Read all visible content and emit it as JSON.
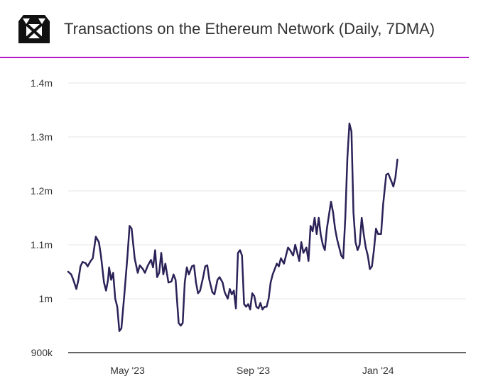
{
  "header": {
    "title": "Transactions on the Ethereum Network (Daily, 7DMA)",
    "logo_icon": "cube-logo-icon",
    "accent_color": "#b318c9"
  },
  "chart_data": {
    "type": "line",
    "title": "Transactions on the Ethereum Network (Daily, 7DMA)",
    "xlabel": "",
    "ylabel": "",
    "ylim": [
      900000,
      1400000
    ],
    "xlim": [
      "2023-03-04",
      "2024-03-27"
    ],
    "grid": true,
    "y_ticks": [
      {
        "value": 900000,
        "label": "900k"
      },
      {
        "value": 1000000,
        "label": "1m"
      },
      {
        "value": 1100000,
        "label": "1.1m"
      },
      {
        "value": 1200000,
        "label": "1.2m"
      },
      {
        "value": 1300000,
        "label": "1.3m"
      },
      {
        "value": 1400000,
        "label": "1.4m"
      }
    ],
    "x_ticks": [
      {
        "date": "2023-05-01",
        "label": "May '23"
      },
      {
        "date": "2023-09-01",
        "label": "Sep '23"
      },
      {
        "date": "2024-01-01",
        "label": "Jan '24"
      }
    ],
    "line_color": "#2b2358",
    "series": [
      {
        "name": "",
        "points": [
          [
            "2023-03-04",
            1050000
          ],
          [
            "2023-03-07",
            1045000
          ],
          [
            "2023-03-09",
            1035000
          ],
          [
            "2023-03-12",
            1018000
          ],
          [
            "2023-03-14",
            1035000
          ],
          [
            "2023-03-16",
            1060000
          ],
          [
            "2023-03-18",
            1068000
          ],
          [
            "2023-03-21",
            1066000
          ],
          [
            "2023-03-23",
            1060000
          ],
          [
            "2023-03-26",
            1070000
          ],
          [
            "2023-03-28",
            1075000
          ],
          [
            "2023-03-31",
            1115000
          ],
          [
            "2023-04-03",
            1105000
          ],
          [
            "2023-04-05",
            1080000
          ],
          [
            "2023-04-08",
            1030000
          ],
          [
            "2023-04-10",
            1015000
          ],
          [
            "2023-04-12",
            1035000
          ],
          [
            "2023-04-13",
            1058000
          ],
          [
            "2023-04-15",
            1035000
          ],
          [
            "2023-04-17",
            1048000
          ],
          [
            "2023-04-19",
            1000000
          ],
          [
            "2023-04-21",
            985000
          ],
          [
            "2023-04-23",
            940000
          ],
          [
            "2023-04-25",
            945000
          ],
          [
            "2023-04-28",
            1010000
          ],
          [
            "2023-05-01",
            1080000
          ],
          [
            "2023-05-03",
            1135000
          ],
          [
            "2023-05-05",
            1130000
          ],
          [
            "2023-05-08",
            1075000
          ],
          [
            "2023-05-11",
            1048000
          ],
          [
            "2023-05-13",
            1062000
          ],
          [
            "2023-05-16",
            1055000
          ],
          [
            "2023-05-18",
            1048000
          ],
          [
            "2023-05-21",
            1062000
          ],
          [
            "2023-05-24",
            1072000
          ],
          [
            "2023-05-26",
            1058000
          ],
          [
            "2023-05-28",
            1090000
          ],
          [
            "2023-05-30",
            1040000
          ],
          [
            "2023-06-01",
            1048000
          ],
          [
            "2023-06-03",
            1085000
          ],
          [
            "2023-06-05",
            1045000
          ],
          [
            "2023-06-07",
            1065000
          ],
          [
            "2023-06-10",
            1030000
          ],
          [
            "2023-06-13",
            1032000
          ],
          [
            "2023-06-15",
            1045000
          ],
          [
            "2023-06-17",
            1035000
          ],
          [
            "2023-06-20",
            955000
          ],
          [
            "2023-06-22",
            950000
          ],
          [
            "2023-06-24",
            955000
          ],
          [
            "2023-06-26",
            1030000
          ],
          [
            "2023-06-28",
            1058000
          ],
          [
            "2023-06-30",
            1045000
          ],
          [
            "2023-07-03",
            1060000
          ],
          [
            "2023-07-05",
            1062000
          ],
          [
            "2023-07-07",
            1030000
          ],
          [
            "2023-07-09",
            1010000
          ],
          [
            "2023-07-11",
            1015000
          ],
          [
            "2023-07-14",
            1040000
          ],
          [
            "2023-07-16",
            1060000
          ],
          [
            "2023-07-18",
            1062000
          ],
          [
            "2023-07-20",
            1035000
          ],
          [
            "2023-07-23",
            1012000
          ],
          [
            "2023-07-25",
            1008000
          ],
          [
            "2023-07-28",
            1035000
          ],
          [
            "2023-07-30",
            1040000
          ],
          [
            "2023-08-02",
            1030000
          ],
          [
            "2023-08-04",
            1012000
          ],
          [
            "2023-08-07",
            1000000
          ],
          [
            "2023-08-09",
            1018000
          ],
          [
            "2023-08-11",
            1008000
          ],
          [
            "2023-08-13",
            1015000
          ],
          [
            "2023-08-15",
            982000
          ],
          [
            "2023-08-17",
            1085000
          ],
          [
            "2023-08-19",
            1090000
          ],
          [
            "2023-08-21",
            1080000
          ],
          [
            "2023-08-23",
            990000
          ],
          [
            "2023-08-25",
            985000
          ],
          [
            "2023-08-27",
            990000
          ],
          [
            "2023-08-29",
            980000
          ],
          [
            "2023-08-31",
            1010000
          ],
          [
            "2023-09-02",
            1005000
          ],
          [
            "2023-09-04",
            985000
          ],
          [
            "2023-09-06",
            982000
          ],
          [
            "2023-09-08",
            992000
          ],
          [
            "2023-09-10",
            980000
          ],
          [
            "2023-09-12",
            985000
          ],
          [
            "2023-09-14",
            985000
          ],
          [
            "2023-09-16",
            1000000
          ],
          [
            "2023-09-18",
            1030000
          ],
          [
            "2023-09-20",
            1045000
          ],
          [
            "2023-09-22",
            1055000
          ],
          [
            "2023-09-24",
            1065000
          ],
          [
            "2023-09-26",
            1060000
          ],
          [
            "2023-09-28",
            1075000
          ],
          [
            "2023-10-01",
            1065000
          ],
          [
            "2023-10-03",
            1080000
          ],
          [
            "2023-10-05",
            1095000
          ],
          [
            "2023-10-07",
            1090000
          ],
          [
            "2023-10-10",
            1080000
          ],
          [
            "2023-10-12",
            1100000
          ],
          [
            "2023-10-14",
            1085000
          ],
          [
            "2023-10-16",
            1070000
          ],
          [
            "2023-10-18",
            1105000
          ],
          [
            "2023-10-20",
            1085000
          ],
          [
            "2023-10-23",
            1095000
          ],
          [
            "2023-10-25",
            1070000
          ],
          [
            "2023-10-27",
            1135000
          ],
          [
            "2023-10-29",
            1125000
          ],
          [
            "2023-10-31",
            1150000
          ],
          [
            "2023-11-02",
            1120000
          ],
          [
            "2023-11-04",
            1150000
          ],
          [
            "2023-11-06",
            1118000
          ],
          [
            "2023-11-08",
            1100000
          ],
          [
            "2023-11-10",
            1090000
          ],
          [
            "2023-11-12",
            1130000
          ],
          [
            "2023-11-14",
            1155000
          ],
          [
            "2023-11-16",
            1180000
          ],
          [
            "2023-11-18",
            1160000
          ],
          [
            "2023-11-20",
            1130000
          ],
          [
            "2023-11-22",
            1110000
          ],
          [
            "2023-11-24",
            1095000
          ],
          [
            "2023-11-26",
            1080000
          ],
          [
            "2023-11-28",
            1075000
          ],
          [
            "2023-11-30",
            1150000
          ],
          [
            "2023-12-02",
            1260000
          ],
          [
            "2023-12-04",
            1325000
          ],
          [
            "2023-12-06",
            1310000
          ],
          [
            "2023-12-08",
            1160000
          ],
          [
            "2023-12-10",
            1105000
          ],
          [
            "2023-12-12",
            1090000
          ],
          [
            "2023-12-14",
            1100000
          ],
          [
            "2023-12-16",
            1150000
          ],
          [
            "2023-12-18",
            1120000
          ],
          [
            "2023-12-20",
            1095000
          ],
          [
            "2023-12-22",
            1080000
          ],
          [
            "2023-12-24",
            1055000
          ],
          [
            "2023-12-26",
            1060000
          ],
          [
            "2023-12-28",
            1090000
          ],
          [
            "2023-12-30",
            1130000
          ],
          [
            "2024-01-01",
            1120000
          ],
          [
            "2024-01-04",
            1120000
          ],
          [
            "2024-01-06",
            1175000
          ],
          [
            "2024-01-09",
            1230000
          ],
          [
            "2024-01-11",
            1232000
          ],
          [
            "2024-01-14",
            1218000
          ],
          [
            "2024-01-16",
            1208000
          ],
          [
            "2024-01-18",
            1225000
          ],
          [
            "2024-01-20",
            1258000
          ]
        ]
      }
    ]
  }
}
